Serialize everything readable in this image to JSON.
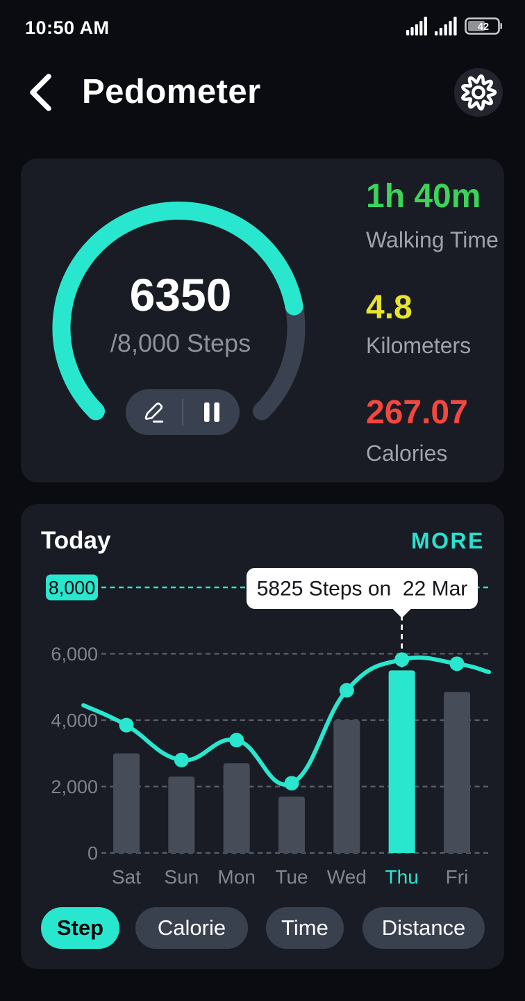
{
  "status_bar": {
    "time": "10:50 AM",
    "battery_percent": 42,
    "battery_label": "42",
    "icons": [
      "signal-icon",
      "signal-icon",
      "battery-icon"
    ]
  },
  "header": {
    "title": "Pedometer",
    "back_icon": "chevron-left-icon",
    "settings_icon": "gear-icon"
  },
  "summary_card": {
    "steps_value": "6350",
    "goal_label": "/8,000 Steps",
    "progress": {
      "current": 6350,
      "goal": 8000
    },
    "actions": [
      "edit-goal",
      "pause"
    ],
    "stats": [
      {
        "value": "1h 40m",
        "label": "Walking Time",
        "color": "#3CD35B"
      },
      {
        "value": "4.8",
        "label": "Kilometers",
        "color": "#E9E42B"
      },
      {
        "value": "267.07",
        "label": "Calories",
        "color": "#F4473F"
      }
    ]
  },
  "chart_card": {
    "title": "Today",
    "more_label": "MORE",
    "filters": [
      {
        "label": "Step",
        "active": true
      },
      {
        "label": "Calorie",
        "active": false
      },
      {
        "label": "Time",
        "active": false
      },
      {
        "label": "Distance",
        "active": false
      }
    ]
  },
  "chart_data": {
    "type": "bar",
    "title": "Today",
    "categories": [
      "Sat",
      "Sun",
      "Mon",
      "Tue",
      "Wed",
      "Thu",
      "Fri"
    ],
    "series": [
      {
        "name": "daily-steps-bars",
        "type": "bar",
        "values": [
          3000,
          2300,
          2700,
          1700,
          4000,
          5500,
          4850
        ]
      },
      {
        "name": "steps-trend-line",
        "type": "line",
        "values": [
          3850,
          2800,
          3400,
          2100,
          4900,
          5825,
          5700
        ]
      }
    ],
    "trend_extend": {
      "pre_value": 4450,
      "pre_offset_days": -0.78,
      "post_value": 5450,
      "post_offset_days": 0.58
    },
    "highlight_category": "Thu",
    "y_ticks": [
      0,
      2000,
      4000,
      6000,
      8000
    ],
    "y_tick_labels": [
      "0",
      "2,000",
      "4,000",
      "6,000",
      "8,000"
    ],
    "ylim": [
      0,
      8000
    ],
    "grid": "dashed-horizontal",
    "goal_tick": {
      "value": 8000,
      "label": "8,000"
    },
    "tooltip": {
      "text": "5825 Steps on  22 Mar",
      "category": "Thu",
      "value": 5825
    },
    "xlabel": "",
    "ylabel": ""
  },
  "colors": {
    "accent": "#29E7CE",
    "page_bg": "#0A0C11",
    "card_bg": "#191C24",
    "bar_gray": "#464C58",
    "grid_gray": "#5A5F69",
    "axis_text": "#7F838C",
    "x_label": "#83868E",
    "track_gray": "#3A4150",
    "tooltip_bg": "#FFFFFF",
    "tooltip_text": "#15171C"
  }
}
